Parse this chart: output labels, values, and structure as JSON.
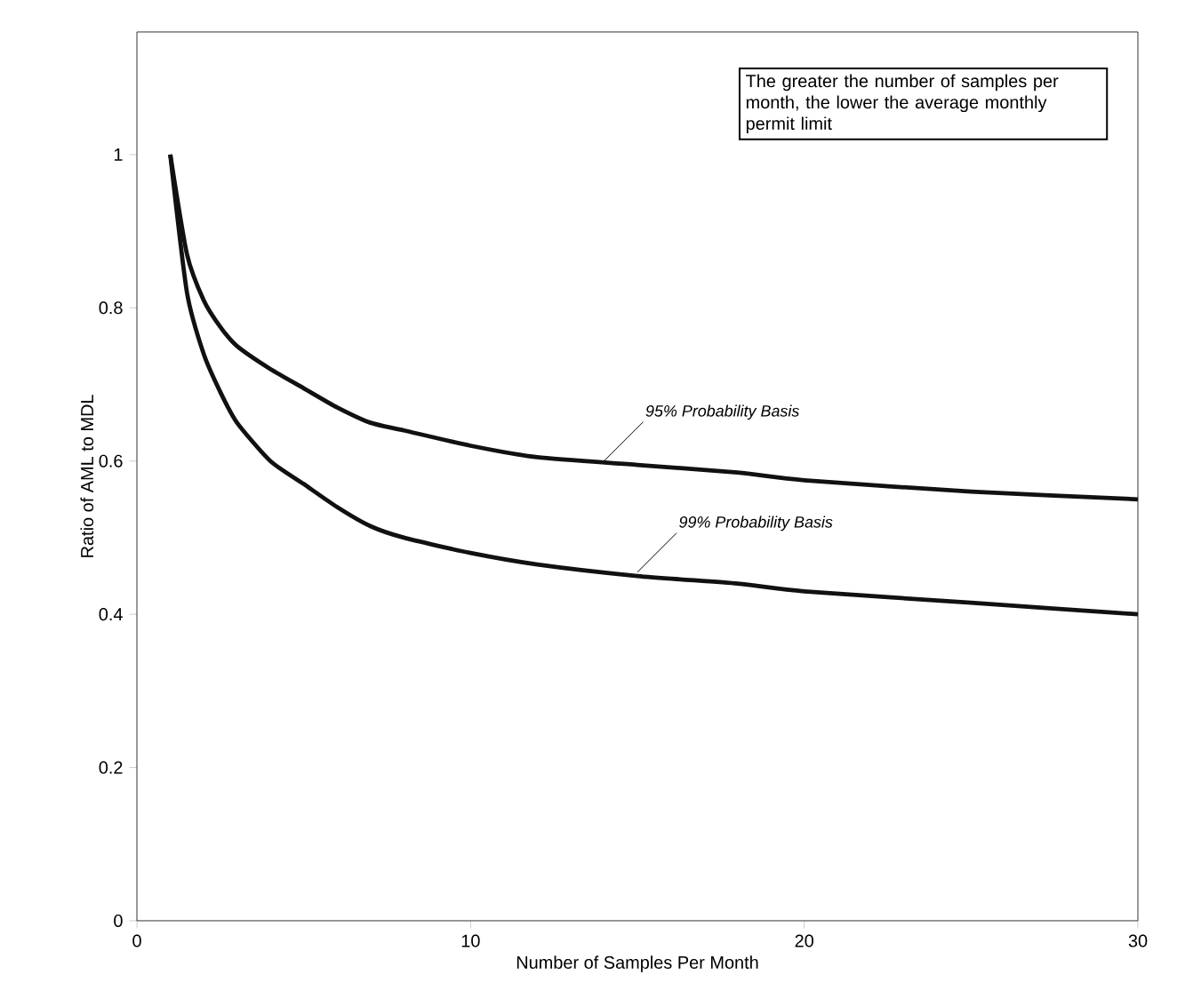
{
  "chart_data": {
    "type": "line",
    "xlabel": "Number of Samples Per Month",
    "ylabel": "Ratio of AML to MDL",
    "x": [
      1,
      1.5,
      2,
      2.5,
      3,
      4,
      5,
      6,
      7,
      8,
      10,
      12,
      15,
      18,
      20,
      25,
      30
    ],
    "series": [
      {
        "color": "#111111",
        "values": [
          1,
          0.87,
          0.81,
          0.775,
          0.75,
          0.72,
          0.695,
          0.67,
          0.65,
          0.64,
          0.62,
          0.605,
          0.595,
          0.585,
          0.575,
          0.56,
          0.55
        ]
      },
      {
        "color": "#111111",
        "values": [
          1,
          0.82,
          0.74,
          0.69,
          0.65,
          0.6,
          0.57,
          0.54,
          0.515,
          0.5,
          0.48,
          0.465,
          0.45,
          0.44,
          0.43,
          0.415,
          0.4
        ]
      }
    ],
    "xlim": [
      0,
      30
    ],
    "ylim": [
      0,
      1.16
    ],
    "xticks": [
      0,
      10,
      20,
      30
    ],
    "yticks": [
      0,
      0.2,
      0.4,
      0.6,
      0.8,
      1
    ],
    "grid": false,
    "marker": "none",
    "line_style": "solid",
    "annotations": [
      "The greater the number of samples per month, the lower the average monthly permit limit",
      {
        "text": "95% Probability Basis",
        "x": 14,
        "y": 0.6
      },
      {
        "text": "99% Probability Basis",
        "x": 15,
        "y": 0.455
      }
    ]
  }
}
